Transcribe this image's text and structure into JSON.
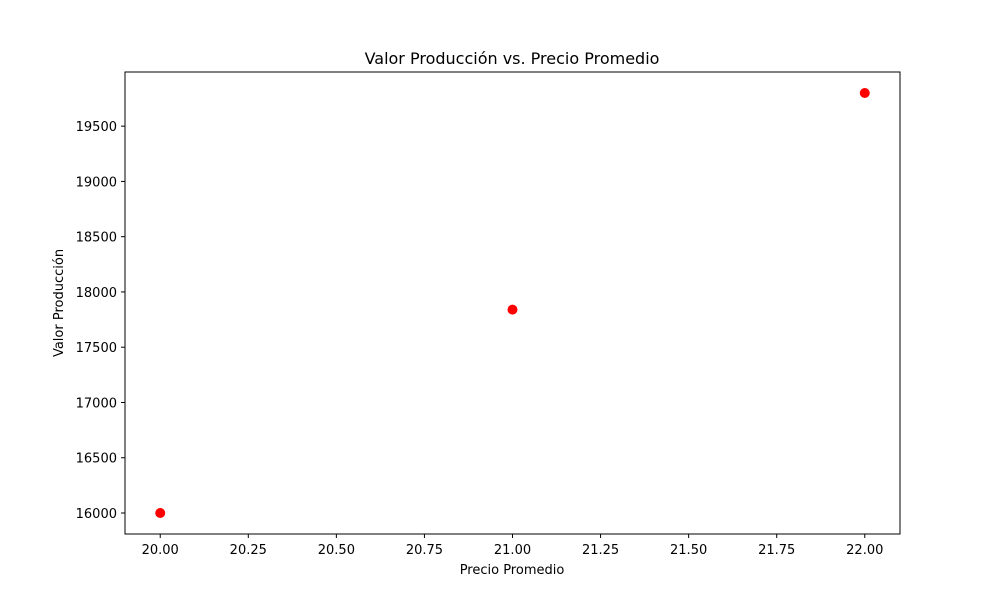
{
  "chart_data": {
    "type": "scatter",
    "title": "Valor Producción vs. Precio Promedio",
    "xlabel": "Precio Promedio",
    "ylabel": "Valor Producción",
    "xlim": [
      19.9,
      22.1
    ],
    "ylim": [
      15810,
      19990
    ],
    "xticks": [
      "20.00",
      "20.25",
      "20.50",
      "20.75",
      "21.00",
      "21.25",
      "21.50",
      "21.75",
      "22.00"
    ],
    "yticks": [
      "16000",
      "16500",
      "17000",
      "17500",
      "18000",
      "18500",
      "19000",
      "19500"
    ],
    "series": [
      {
        "color": "#ff0000",
        "points": [
          {
            "x": 20.0,
            "y": 16000
          },
          {
            "x": 21.0,
            "y": 17840
          },
          {
            "x": 22.0,
            "y": 19800
          }
        ]
      }
    ],
    "grid": false,
    "legend": "none"
  }
}
